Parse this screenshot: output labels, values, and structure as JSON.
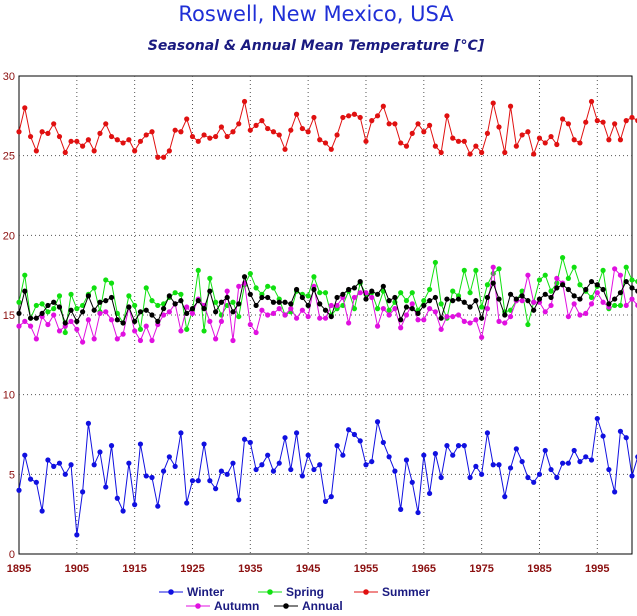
{
  "chart_data": {
    "type": "line",
    "title": "Roswell, New Mexico, USA",
    "subtitle": "Seasonal & Annual Mean Temperature [°C]",
    "xlabel": "",
    "ylabel": "",
    "xlim": [
      1895,
      2001
    ],
    "ylim": [
      0,
      30
    ],
    "yticks": [
      0,
      5,
      10,
      15,
      20,
      25,
      30
    ],
    "xticks": [
      1895,
      1905,
      1915,
      1925,
      1935,
      1945,
      1955,
      1965,
      1975,
      1985,
      1995
    ],
    "grid": true,
    "legend_position": "bottom",
    "start_year": 1895,
    "series": [
      {
        "name": "Winter",
        "color": "#1010e0",
        "values": [
          4.0,
          6.2,
          4.7,
          4.5,
          2.7,
          5.9,
          5.5,
          5.7,
          5.0,
          5.6,
          1.2,
          3.9,
          8.2,
          5.6,
          6.4,
          4.2,
          6.8,
          3.5,
          2.7,
          5.7,
          3.1,
          6.9,
          4.9,
          4.8,
          3.0,
          5.2,
          6.1,
          5.5,
          7.6,
          3.2,
          4.6,
          4.6,
          6.9,
          4.6,
          4.1,
          5.2,
          5.0,
          5.7,
          3.4,
          7.2,
          7.0,
          5.3,
          5.6,
          6.2,
          5.2,
          5.7,
          7.3,
          5.3,
          7.6,
          4.9,
          6.2,
          5.3,
          5.6,
          3.3,
          3.6,
          6.8,
          6.2,
          7.8,
          7.5,
          7.1,
          5.6,
          5.8,
          8.3,
          7.0,
          6.1,
          5.2,
          2.8,
          5.9,
          4.5,
          2.6,
          6.2,
          3.8,
          6.3,
          4.8,
          6.8,
          6.2,
          6.8,
          6.8,
          4.8,
          5.5,
          5.0,
          7.6,
          5.6,
          5.6,
          3.6,
          5.4,
          6.6,
          5.8,
          4.8,
          4.5,
          5.0,
          6.5,
          5.3,
          4.8,
          5.7,
          5.7,
          6.5,
          5.8,
          6.1,
          5.9,
          8.5,
          7.4,
          5.3,
          3.9,
          7.7,
          7.3,
          4.9,
          6.1
        ]
      },
      {
        "name": "Spring",
        "color": "#10e010",
        "values": [
          15.8,
          17.5,
          14.8,
          15.6,
          15.7,
          15.2,
          15.4,
          16.2,
          13.9,
          16.3,
          15.4,
          15.6,
          16.3,
          16.7,
          15.2,
          17.2,
          17.0,
          15.1,
          14.5,
          16.2,
          15.6,
          14.1,
          16.7,
          15.9,
          15.6,
          15.7,
          16.1,
          16.4,
          16.3,
          14.1,
          15.3,
          17.8,
          14.0,
          17.3,
          15.8,
          15.0,
          15.6,
          15.8,
          14.9,
          16.9,
          17.6,
          16.7,
          16.3,
          16.8,
          16.7,
          16.0,
          15.0,
          15.2,
          16.5,
          16.3,
          16.2,
          17.4,
          16.4,
          16.4,
          15.0,
          15.4,
          15.6,
          16.5,
          15.4,
          17.0,
          16.3,
          16.4,
          15.4,
          16.5,
          15.3,
          15.8,
          16.4,
          15.9,
          16.4,
          15.3,
          15.9,
          16.6,
          18.3,
          15.7,
          14.8,
          16.5,
          16.2,
          17.8,
          16.4,
          17.8,
          15.5,
          16.9,
          17.6,
          17.9,
          15.2,
          15.3,
          15.9,
          16.5,
          14.4,
          15.8,
          17.2,
          17.5,
          16.5,
          17.0,
          18.6,
          17.3,
          18.0,
          16.9,
          16.5,
          16.1,
          16.8,
          17.8,
          15.4,
          15.6,
          15.6,
          18.0,
          17.2,
          17.1
        ]
      },
      {
        "name": "Summer",
        "color": "#e01010",
        "values": [
          26.5,
          28.0,
          26.2,
          25.3,
          26.5,
          26.4,
          27.0,
          26.2,
          25.2,
          25.9,
          25.9,
          25.6,
          26.0,
          25.3,
          26.4,
          27.0,
          26.2,
          26.0,
          25.8,
          26.0,
          25.3,
          25.9,
          26.3,
          26.5,
          24.9,
          24.9,
          25.3,
          26.6,
          26.5,
          27.3,
          26.2,
          25.9,
          26.3,
          26.1,
          26.2,
          26.8,
          26.2,
          26.5,
          27.0,
          28.4,
          26.6,
          26.9,
          27.2,
          26.7,
          26.5,
          26.3,
          25.4,
          26.6,
          27.6,
          26.7,
          26.5,
          27.4,
          26.0,
          25.8,
          25.4,
          26.3,
          27.4,
          27.5,
          27.6,
          27.4,
          25.9,
          27.2,
          27.5,
          28.1,
          27.0,
          27.0,
          25.8,
          25.6,
          26.4,
          27.0,
          26.5,
          26.9,
          25.6,
          25.2,
          27.5,
          26.1,
          25.9,
          25.9,
          25.1,
          25.6,
          25.2,
          26.4,
          28.3,
          26.8,
          25.2,
          28.1,
          25.6,
          26.3,
          26.5,
          25.1,
          26.1,
          25.8,
          26.2,
          25.7,
          27.3,
          27.0,
          26.0,
          25.8,
          27.1,
          28.4,
          27.2,
          27.1,
          26.0,
          27.0,
          26.0,
          27.2,
          27.4,
          27.2
        ]
      },
      {
        "name": "Autumn",
        "color": "#e010e0",
        "values": [
          14.3,
          14.6,
          14.3,
          13.5,
          14.9,
          14.4,
          15.0,
          14.0,
          14.3,
          14.6,
          14.1,
          13.3,
          14.7,
          13.5,
          15.1,
          15.2,
          14.7,
          13.5,
          13.8,
          15.5,
          14.0,
          13.4,
          14.3,
          13.4,
          14.4,
          15.0,
          15.2,
          15.7,
          14.0,
          15.5,
          15.1,
          16.0,
          15.6,
          14.6,
          13.5,
          14.6,
          16.5,
          13.4,
          16.8,
          17.0,
          14.4,
          13.9,
          15.3,
          15.0,
          15.1,
          15.4,
          15.0,
          15.4,
          14.8,
          15.3,
          14.9,
          16.8,
          14.8,
          14.8,
          15.6,
          15.6,
          16.1,
          14.5,
          16.1,
          16.4,
          16.4,
          16.1,
          14.3,
          15.4,
          15.0,
          15.4,
          14.2,
          15.0,
          15.7,
          14.7,
          14.7,
          15.4,
          15.2,
          14.1,
          14.9,
          14.9,
          15.0,
          14.6,
          14.5,
          14.7,
          13.6,
          15.4,
          18.0,
          14.6,
          14.5,
          14.9,
          15.9,
          15.9,
          17.5,
          15.8,
          15.8,
          15.2,
          15.6,
          17.3,
          17.0,
          14.9,
          15.7,
          15.0,
          15.1,
          15.7,
          16.4,
          15.8,
          15.5,
          17.9,
          17.5,
          15.6,
          16.0,
          15.6
        ]
      },
      {
        "name": "Annual",
        "color": "#000000",
        "values": [
          15.1,
          16.5,
          14.8,
          14.8,
          15.1,
          15.6,
          15.8,
          15.5,
          14.5,
          15.3,
          14.6,
          15.2,
          16.2,
          15.3,
          15.8,
          15.9,
          16.1,
          14.7,
          14.5,
          15.5,
          14.6,
          15.2,
          15.3,
          15.0,
          14.6,
          15.4,
          16.2,
          15.7,
          15.9,
          15.1,
          15.4,
          15.9,
          15.4,
          16.5,
          15.2,
          15.8,
          16.1,
          15.2,
          15.7,
          17.4,
          16.3,
          15.6,
          16.1,
          16.1,
          15.8,
          15.8,
          15.8,
          15.7,
          16.6,
          16.1,
          15.6,
          16.6,
          15.7,
          15.3,
          14.9,
          16.1,
          16.3,
          16.6,
          16.7,
          17.1,
          16.0,
          16.5,
          16.3,
          16.8,
          15.9,
          16.1,
          14.7,
          15.5,
          15.4,
          15.1,
          15.6,
          15.9,
          16.1,
          14.8,
          16.0,
          15.9,
          16.0,
          15.8,
          15.5,
          15.9,
          14.8,
          16.1,
          17.0,
          16.0,
          15.0,
          16.3,
          16.0,
          16.2,
          15.9,
          15.3,
          16.0,
          16.3,
          16.1,
          16.7,
          16.9,
          16.6,
          16.2,
          16.0,
          16.6,
          17.1,
          16.9,
          16.6,
          15.7,
          16.0,
          16.4,
          17.1,
          16.7,
          16.5
        ]
      }
    ]
  }
}
